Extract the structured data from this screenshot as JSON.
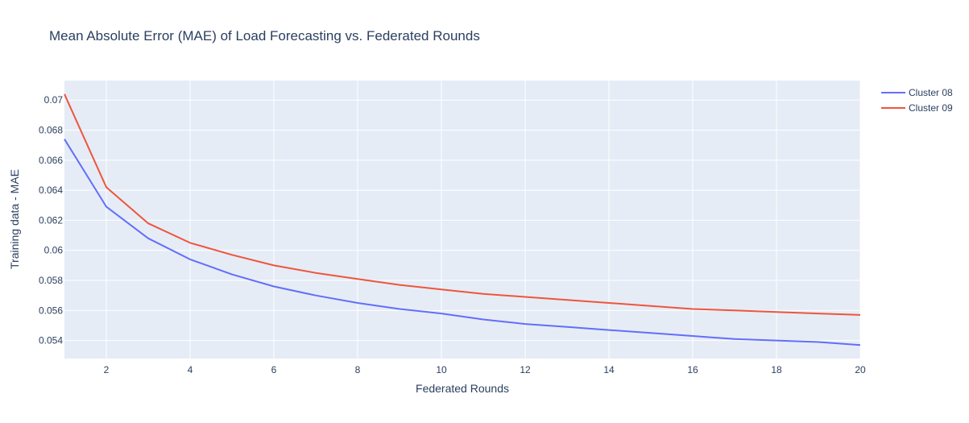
{
  "chart_data": {
    "type": "line",
    "title": "Mean Absolute Error (MAE) of Load Forecasting vs. Federated Rounds",
    "xlabel": "Federated Rounds",
    "ylabel": "Training data - MAE",
    "xlim": [
      1,
      20
    ],
    "ylim": [
      0.0528,
      0.0713
    ],
    "xticks": [
      2,
      4,
      6,
      8,
      10,
      12,
      14,
      16,
      18,
      20
    ],
    "xtick_labels": [
      "2",
      "4",
      "6",
      "8",
      "10",
      "12",
      "14",
      "16",
      "18",
      "20"
    ],
    "yticks": [
      0.054,
      0.056,
      0.058,
      0.06,
      0.062,
      0.064,
      0.066,
      0.068,
      0.07
    ],
    "ytick_labels": [
      "0.054",
      "0.056",
      "0.058",
      "0.06",
      "0.062",
      "0.064",
      "0.066",
      "0.068",
      "0.07"
    ],
    "grid": true,
    "legend_position": "top-right",
    "background": "#e5ecf6",
    "x": [
      1,
      2,
      3,
      4,
      5,
      6,
      7,
      8,
      9,
      10,
      11,
      12,
      13,
      14,
      15,
      16,
      17,
      18,
      19,
      20
    ],
    "series": [
      {
        "name": "Cluster 08",
        "color": "#636efa",
        "values": [
          0.0674,
          0.0629,
          0.0608,
          0.0594,
          0.0584,
          0.0576,
          0.057,
          0.0565,
          0.0561,
          0.0558,
          0.0554,
          0.0551,
          0.0549,
          0.0547,
          0.0545,
          0.0543,
          0.0541,
          0.054,
          0.0539,
          0.0537
        ]
      },
      {
        "name": "Cluster 09",
        "color": "#ef553b",
        "values": [
          0.0704,
          0.0642,
          0.0618,
          0.0605,
          0.0597,
          0.059,
          0.0585,
          0.0581,
          0.0577,
          0.0574,
          0.0571,
          0.0569,
          0.0567,
          0.0565,
          0.0563,
          0.0561,
          0.056,
          0.0559,
          0.0558,
          0.0557
        ]
      }
    ]
  }
}
